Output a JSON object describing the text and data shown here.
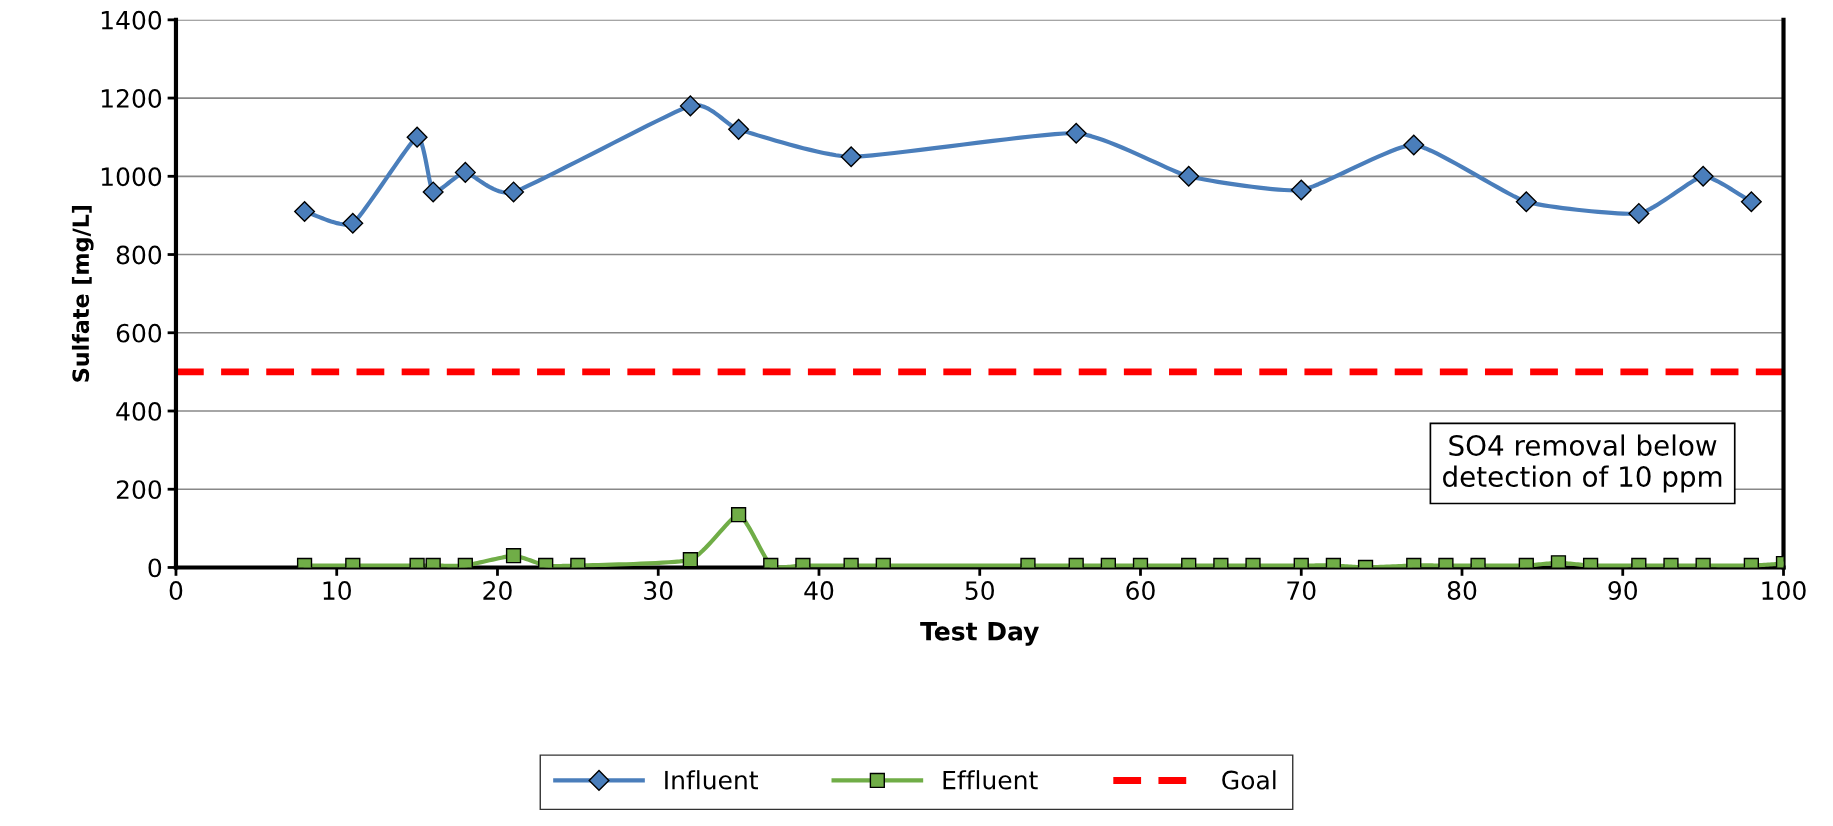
{
  "chart_data": {
    "type": "line",
    "xlabel": "Test Day",
    "ylabel": "Sulfate [mg/L]",
    "xlim": [
      0,
      100
    ],
    "xticks": [
      0,
      10,
      20,
      30,
      40,
      50,
      60,
      70,
      80,
      90,
      100
    ],
    "ylim": [
      0,
      1400
    ],
    "yticks": [
      0,
      200,
      400,
      600,
      800,
      1000,
      1200,
      1400
    ],
    "grid": "y",
    "legend": "bottom",
    "series": [
      {
        "name": "Influent",
        "color": "#4a7ebb",
        "marker": "diamond",
        "x": [
          8,
          11,
          15,
          16,
          18,
          21,
          32,
          35,
          42,
          56,
          63,
          70,
          77,
          84,
          91,
          95,
          98
        ],
        "values": [
          910,
          880,
          1100,
          960,
          1010,
          960,
          1180,
          1120,
          1050,
          1110,
          1000,
          965,
          1080,
          935,
          905,
          1000,
          935
        ]
      },
      {
        "name": "Effluent",
        "color": "#70ad47",
        "marker": "square",
        "x": [
          8,
          11,
          15,
          16,
          18,
          21,
          23,
          25,
          32,
          35,
          37,
          39,
          42,
          44,
          53,
          56,
          58,
          60,
          63,
          65,
          67,
          70,
          72,
          74,
          77,
          79,
          81,
          84,
          86,
          88,
          91,
          93,
          95,
          98,
          100
        ],
        "values": [
          5,
          5,
          5,
          5,
          5,
          30,
          5,
          5,
          20,
          135,
          5,
          5,
          5,
          5,
          5,
          5,
          5,
          5,
          5,
          5,
          5,
          5,
          5,
          0,
          5,
          5,
          5,
          5,
          12,
          5,
          5,
          5,
          5,
          5,
          10
        ]
      }
    ],
    "ref_lines": [
      {
        "axis": "y",
        "value": 500,
        "label": "Goal",
        "color": "#ff0000",
        "line_style": "dashed"
      }
    ],
    "annotations": [
      "SO4 removal below\ndetection of 10 ppm"
    ]
  }
}
